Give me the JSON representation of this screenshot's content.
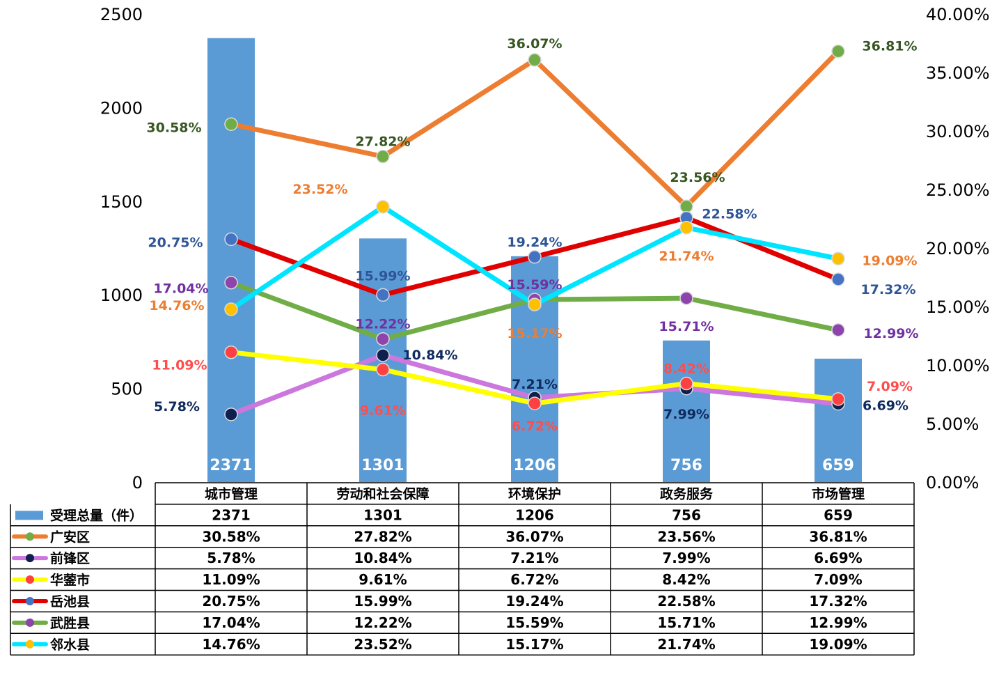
{
  "chart_data": {
    "type": "bar+line",
    "categories": [
      "城市管理",
      "劳动和社会保障",
      "环境保护",
      "政务服务",
      "市场管理"
    ],
    "y_left": {
      "range": [
        0,
        2500
      ],
      "ticks": [
        "0",
        "500",
        "1000",
        "1500",
        "2000",
        "2500"
      ]
    },
    "y_right": {
      "range": [
        0,
        40
      ],
      "ticks": [
        "0.00%",
        "5.00%",
        "10.00%",
        "15.00%",
        "20.00%",
        "25.00%",
        "30.00%",
        "35.00%",
        "40.00%"
      ]
    },
    "bar_series": {
      "name": "受理总量（件）",
      "color": "#5b9bd5",
      "values": [
        2371,
        1301,
        1206,
        756,
        659
      ],
      "labels": [
        "2371",
        "1301",
        "1206",
        "756",
        "659"
      ]
    },
    "line_series": [
      {
        "name": "广安区",
        "line_color": "#ed7d31",
        "marker_color": "#70ad47",
        "label_color": "#375623",
        "values": [
          30.58,
          27.82,
          36.07,
          23.56,
          36.81
        ],
        "labels": [
          "30.58%",
          "27.82%",
          "36.07%",
          "23.56%",
          "36.81%"
        ]
      },
      {
        "name": "前锋区",
        "line_color": "#cc77dd",
        "marker_color": "#0f1f4f",
        "label_color": "#0f2a5c",
        "values": [
          5.78,
          10.84,
          7.21,
          7.99,
          6.69
        ],
        "labels": [
          "5.78%",
          "10.84%",
          "7.21%",
          "7.99%",
          "6.69%"
        ]
      },
      {
        "name": "华蓥市",
        "line_color": "#ffff00",
        "marker_color": "#ff4040",
        "label_color": "#ff4d4d",
        "values": [
          11.09,
          9.61,
          6.72,
          8.42,
          7.09
        ],
        "labels": [
          "11.09%",
          "9.61%",
          "6.72%",
          "8.42%",
          "7.09%"
        ]
      },
      {
        "name": "岳池县",
        "line_color": "#e00000",
        "marker_color": "#4472c4",
        "label_color": "#2f5597",
        "values": [
          20.75,
          15.99,
          19.24,
          22.58,
          17.32
        ],
        "labels": [
          "20.75%",
          "15.99%",
          "19.24%",
          "22.58%",
          "17.32%"
        ]
      },
      {
        "name": "武胜县",
        "line_color": "#70ad47",
        "marker_color": "#8e44ad",
        "label_color": "#7030a0",
        "values": [
          17.04,
          12.22,
          15.59,
          15.71,
          12.99
        ],
        "labels": [
          "17.04%",
          "12.22%",
          "15.59%",
          "15.71%",
          "12.99%"
        ]
      },
      {
        "name": "邻水县",
        "line_color": "#00e5ff",
        "marker_color": "#ffc000",
        "label_color": "#ed7d31",
        "values": [
          14.76,
          23.52,
          15.17,
          21.74,
          19.09
        ],
        "labels": [
          "14.76%",
          "23.52%",
          "15.17%",
          "21.74%",
          "19.09%"
        ]
      }
    ]
  }
}
